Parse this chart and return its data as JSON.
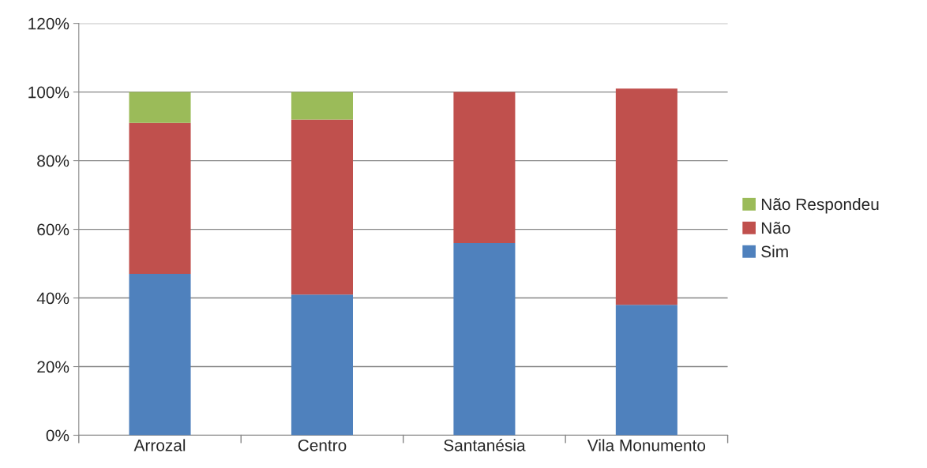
{
  "chart_data": {
    "type": "bar",
    "stacked": true,
    "categories": [
      "Arrozal",
      "Centro",
      "Santanésia",
      "Vila Monumento"
    ],
    "series": [
      {
        "name": "Sim",
        "color": "#4f81bd",
        "values": [
          47,
          41,
          56,
          38
        ]
      },
      {
        "name": "Não",
        "color": "#c0504d",
        "values": [
          44,
          51,
          44,
          63
        ]
      },
      {
        "name": "Não Respondeu",
        "color": "#9bbb59",
        "values": [
          9,
          8,
          null,
          null
        ]
      }
    ],
    "ylim": [
      0,
      120
    ],
    "yticks": [
      {
        "value": 0,
        "label": "0%"
      },
      {
        "value": 20,
        "label": "20%"
      },
      {
        "value": 40,
        "label": "40%"
      },
      {
        "value": 60,
        "label": "60%"
      },
      {
        "value": 80,
        "label": "80%"
      },
      {
        "value": 100,
        "label": "100%"
      },
      {
        "value": 120,
        "label": "120%"
      }
    ],
    "grid": "y",
    "legend": "right"
  }
}
